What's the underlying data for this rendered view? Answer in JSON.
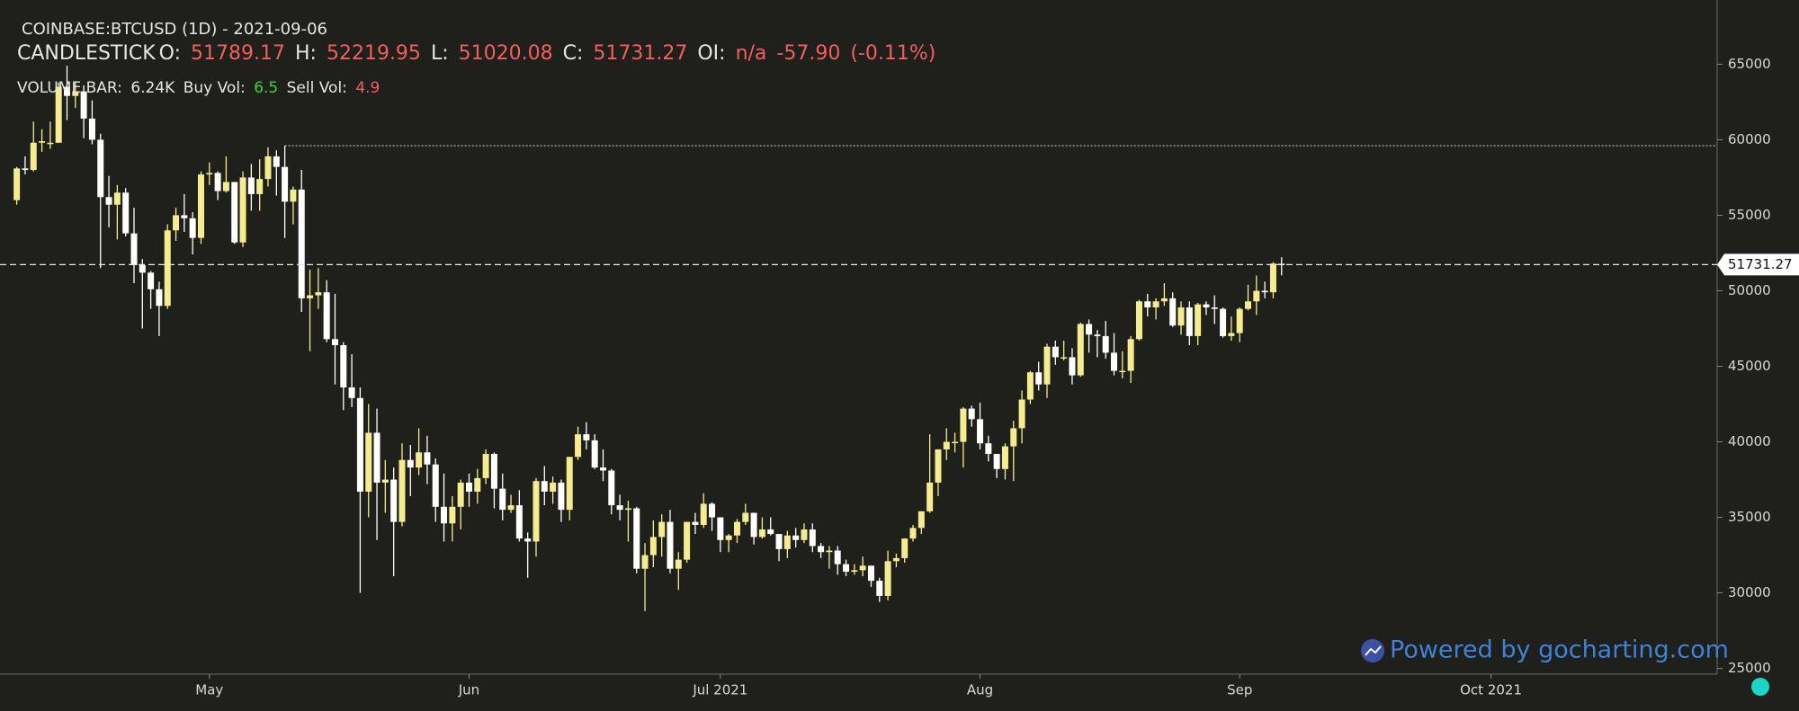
{
  "chart_data": {
    "type": "candlestick",
    "title": "COINBASE:BTCUSD (1D) - 2021-09-06",
    "series_name": "CANDLESTICK",
    "ohlc_labels": [
      "O:",
      "H:",
      "L:",
      "C:"
    ],
    "oi_label": "OI:",
    "oi_value": "n/a",
    "change": {
      "value": -57.9,
      "label": "-57.90"
    },
    "change_pct": {
      "value": -0.11,
      "label": "(-0.11%)"
    },
    "volume_legend": {
      "name": "VOLUME BAR:",
      "value": {
        "value": 6240,
        "label": "6.24K"
      },
      "buy_label": "Buy Vol:",
      "buy": 6.5,
      "sell_label": "Sell Vol:",
      "sell": 4.9
    },
    "watermark": "Powered by gocharting.com",
    "up_color": "#f4ec8f",
    "down_color": "#ffffff",
    "x": [
      "2021-04-08",
      "2021-04-09",
      "2021-04-10",
      "2021-04-11",
      "2021-04-12",
      "2021-04-13",
      "2021-04-14",
      "2021-04-15",
      "2021-04-16",
      "2021-04-17",
      "2021-04-18",
      "2021-04-19",
      "2021-04-20",
      "2021-04-21",
      "2021-04-22",
      "2021-04-23",
      "2021-04-24",
      "2021-04-25",
      "2021-04-26",
      "2021-04-27",
      "2021-04-28",
      "2021-04-29",
      "2021-04-30",
      "2021-05-01",
      "2021-05-02",
      "2021-05-03",
      "2021-05-04",
      "2021-05-05",
      "2021-05-06",
      "2021-05-07",
      "2021-05-08",
      "2021-05-09",
      "2021-05-10",
      "2021-05-11",
      "2021-05-12",
      "2021-05-13",
      "2021-05-14",
      "2021-05-15",
      "2021-05-16",
      "2021-05-17",
      "2021-05-18",
      "2021-05-19",
      "2021-05-20",
      "2021-05-21",
      "2021-05-22",
      "2021-05-23",
      "2021-05-24",
      "2021-05-25",
      "2021-05-26",
      "2021-05-27",
      "2021-05-28",
      "2021-05-29",
      "2021-05-30",
      "2021-05-31",
      "2021-06-01",
      "2021-06-02",
      "2021-06-03",
      "2021-06-04",
      "2021-06-05",
      "2021-06-06",
      "2021-06-07",
      "2021-06-08",
      "2021-06-09",
      "2021-06-10",
      "2021-06-11",
      "2021-06-12",
      "2021-06-13",
      "2021-06-14",
      "2021-06-15",
      "2021-06-16",
      "2021-06-17",
      "2021-06-18",
      "2021-06-19",
      "2021-06-20",
      "2021-06-21",
      "2021-06-22",
      "2021-06-23",
      "2021-06-24",
      "2021-06-25",
      "2021-06-26",
      "2021-06-27",
      "2021-06-28",
      "2021-06-29",
      "2021-06-30",
      "2021-07-01",
      "2021-07-02",
      "2021-07-03",
      "2021-07-04",
      "2021-07-05",
      "2021-07-06",
      "2021-07-07",
      "2021-07-08",
      "2021-07-09",
      "2021-07-10",
      "2021-07-11",
      "2021-07-12",
      "2021-07-13",
      "2021-07-14",
      "2021-07-15",
      "2021-07-16",
      "2021-07-17",
      "2021-07-18",
      "2021-07-19",
      "2021-07-20",
      "2021-07-21",
      "2021-07-22",
      "2021-07-23",
      "2021-07-24",
      "2021-07-25",
      "2021-07-26",
      "2021-07-27",
      "2021-07-28",
      "2021-07-29",
      "2021-07-30",
      "2021-07-31",
      "2021-08-01",
      "2021-08-02",
      "2021-08-03",
      "2021-08-04",
      "2021-08-05",
      "2021-08-06",
      "2021-08-07",
      "2021-08-08",
      "2021-08-09",
      "2021-08-10",
      "2021-08-11",
      "2021-08-12",
      "2021-08-13",
      "2021-08-14",
      "2021-08-15",
      "2021-08-16",
      "2021-08-17",
      "2021-08-18",
      "2021-08-19",
      "2021-08-20",
      "2021-08-21",
      "2021-08-22",
      "2021-08-23",
      "2021-08-24",
      "2021-08-25",
      "2021-08-26",
      "2021-08-27",
      "2021-08-28",
      "2021-08-29",
      "2021-08-30",
      "2021-08-31",
      "2021-09-01",
      "2021-09-02",
      "2021-09-03",
      "2021-09-04",
      "2021-09-05",
      "2021-09-06"
    ],
    "open": [
      56000,
      58100,
      58000,
      59800,
      59800,
      59800,
      63500,
      62900,
      63200,
      61400,
      60000,
      56200,
      55700,
      56500,
      53800,
      51700,
      51200,
      50100,
      49000,
      54000,
      55000,
      54800,
      53500,
      57700,
      57800,
      56600,
      57200,
      53200,
      57500,
      56400,
      57400,
      58900,
      58200,
      55900,
      56700,
      49500,
      49700,
      49900,
      46800,
      46400,
      43600,
      42900,
      36700,
      40600,
      37300,
      37500,
      34700,
      38800,
      38300,
      39300,
      38500,
      35700,
      34600,
      35700,
      37300,
      36700,
      37600,
      39200,
      36900,
      35500,
      35800,
      33600,
      33400,
      37400,
      36700,
      37300,
      35500,
      39000,
      40500,
      40100,
      38300,
      38100,
      35800,
      35500,
      35600,
      31600,
      32500,
      33700,
      34700,
      31600,
      32200,
      34700,
      34500,
      35900,
      35000,
      33500,
      33800,
      34700,
      35300,
      33700,
      34200,
      33900,
      32900,
      33800,
      33500,
      34200,
      33100,
      32700,
      32800,
      31900,
      31400,
      31500,
      31800,
      30800,
      29800,
      32100,
      32300,
      33600,
      34300,
      35400,
      37300,
      39500,
      40000,
      40000,
      42200,
      41500,
      39900,
      39200,
      38200,
      39700,
      40900,
      42800,
      44600,
      43800,
      46300,
      45600,
      45600,
      44400,
      47800,
      47100,
      47000,
      45900,
      44700,
      44700,
      46800,
      49300,
      48900,
      49300,
      49500,
      47700,
      48900,
      47000,
      49100,
      48900,
      48800,
      47000,
      47200,
      48800,
      49300,
      50000,
      49900,
      51789.17
    ],
    "high": [
      58200,
      58900,
      61200,
      60700,
      61200,
      63800,
      64900,
      63800,
      63600,
      62600,
      60400,
      57600,
      57000,
      56800,
      55500,
      52100,
      51300,
      50600,
      54400,
      55500,
      56400,
      55200,
      57900,
      58500,
      57900,
      58900,
      57200,
      57900,
      58400,
      58700,
      59500,
      59300,
      59600,
      56900,
      58000,
      51400,
      51500,
      50700,
      49800,
      46600,
      45800,
      43600,
      42500,
      42200,
      38800,
      38300,
      39900,
      39800,
      40900,
      40400,
      38900,
      37900,
      36400,
      37500,
      37900,
      38200,
      39500,
      39300,
      37900,
      36500,
      36800,
      34000,
      37600,
      38400,
      37700,
      37500,
      39000,
      41000,
      41300,
      40500,
      39500,
      38200,
      36500,
      36100,
      35700,
      33300,
      34800,
      35200,
      35500,
      32700,
      34700,
      35300,
      36600,
      36000,
      35000,
      33900,
      34900,
      35900,
      35300,
      35000,
      35000,
      33900,
      34100,
      34300,
      34600,
      34600,
      33300,
      33100,
      33100,
      32200,
      31900,
      32400,
      31800,
      31000,
      32800,
      32600,
      33600,
      34500,
      35400,
      40500,
      39500,
      40900,
      40600,
      42300,
      42400,
      42600,
      40400,
      39200,
      39900,
      41400,
      43400,
      44700,
      45300,
      46500,
      46700,
      46700,
      46200,
      47900,
      48100,
      47400,
      48000,
      47200,
      46000,
      47000,
      49400,
      49800,
      49500,
      50500,
      49900,
      49300,
      49300,
      49200,
      49300,
      49700,
      48900,
      48300,
      48900,
      50400,
      51000,
      50600,
      51900,
      52219.95
    ],
    "low": [
      55700,
      57700,
      57900,
      59200,
      59400,
      59800,
      61300,
      62100,
      60100,
      59700,
      51500,
      54200,
      53400,
      53600,
      50500,
      47500,
      48800,
      47000,
      48800,
      53300,
      53900,
      52400,
      53100,
      57000,
      56000,
      56500,
      53100,
      52900,
      55300,
      55300,
      56900,
      56300,
      53500,
      54400,
      48600,
      46000,
      48800,
      46600,
      43800,
      42100,
      42300,
      30000,
      35000,
      33500,
      35300,
      31100,
      34400,
      36400,
      37800,
      37200,
      34700,
      33400,
      33400,
      34200,
      35700,
      35900,
      37200,
      35600,
      34800,
      35300,
      33400,
      31000,
      32400,
      35800,
      35900,
      34700,
      34800,
      38800,
      39500,
      38200,
      37400,
      35200,
      34800,
      33400,
      31300,
      28800,
      31700,
      32400,
      31300,
      30200,
      32000,
      33900,
      34300,
      34100,
      32700,
      32700,
      33300,
      34500,
      33200,
      33600,
      33800,
      32100,
      32300,
      33000,
      33300,
      32700,
      32300,
      31600,
      31200,
      31100,
      31200,
      31100,
      30400,
      29400,
      29500,
      31700,
      32000,
      33400,
      33900,
      35300,
      36400,
      38800,
      39300,
      38300,
      41000,
      39500,
      38700,
      37600,
      37500,
      37400,
      39900,
      42500,
      43400,
      42900,
      45100,
      45400,
      43800,
      44300,
      45900,
      45600,
      45500,
      44400,
      44200,
      43900,
      46700,
      48300,
      48100,
      49000,
      47600,
      47100,
      46400,
      46400,
      48400,
      47800,
      46900,
      46700,
      46600,
      48700,
      48400,
      49500,
      49500,
      51020.08
    ],
    "close": [
      58100,
      58000,
      59800,
      59900,
      59800,
      63500,
      62900,
      63200,
      61400,
      60000,
      56200,
      55700,
      56500,
      53800,
      51700,
      51200,
      50100,
      49000,
      54000,
      55000,
      54800,
      53500,
      57700,
      57800,
      56600,
      57200,
      53200,
      57500,
      56400,
      57400,
      58900,
      58200,
      55900,
      56700,
      49500,
      49700,
      49900,
      46800,
      46400,
      43600,
      42900,
      36700,
      40600,
      37300,
      37500,
      34700,
      38800,
      38300,
      39300,
      38500,
      35700,
      34600,
      35700,
      37300,
      36700,
      37600,
      39200,
      36900,
      35500,
      35800,
      33600,
      33400,
      37400,
      36700,
      37300,
      35500,
      39000,
      40500,
      40100,
      38300,
      38100,
      35800,
      35500,
      35600,
      31600,
      32500,
      33700,
      34700,
      31600,
      32200,
      34700,
      34500,
      35900,
      35000,
      33500,
      33800,
      34700,
      35300,
      33700,
      34200,
      33900,
      32900,
      33800,
      33500,
      34200,
      33100,
      32700,
      32800,
      31900,
      31400,
      31500,
      31800,
      30800,
      29800,
      32100,
      32300,
      33600,
      34300,
      35400,
      37300,
      39500,
      40000,
      40000,
      42200,
      41500,
      39900,
      39200,
      38200,
      39700,
      40900,
      42800,
      44600,
      43800,
      46300,
      45600,
      45600,
      44400,
      47800,
      47100,
      47000,
      45900,
      44700,
      44700,
      46800,
      49300,
      48900,
      49300,
      49500,
      47700,
      48900,
      47000,
      49100,
      48900,
      48800,
      47000,
      47200,
      48800,
      49300,
      50000,
      49900,
      51800,
      51731.27
    ],
    "high_line": {
      "value": 59600,
      "start": "2021-05-10"
    },
    "xlim": [
      "2021-04-06",
      "2021-10-28"
    ],
    "xticks": [
      {
        "value": "2021-05-01",
        "label": "May"
      },
      {
        "value": "2021-06-01",
        "label": "Jun"
      },
      {
        "value": "2021-07-01",
        "label": "Jul 2021"
      },
      {
        "value": "2021-08-01",
        "label": "Aug"
      },
      {
        "value": "2021-09-01",
        "label": "Sep"
      },
      {
        "value": "2021-10-01",
        "label": "Oct 2021"
      }
    ],
    "ylim": [
      24620,
      69250
    ],
    "yticks": [
      25000,
      30000,
      35000,
      40000,
      45000,
      50000,
      55000,
      60000,
      65000
    ]
  }
}
